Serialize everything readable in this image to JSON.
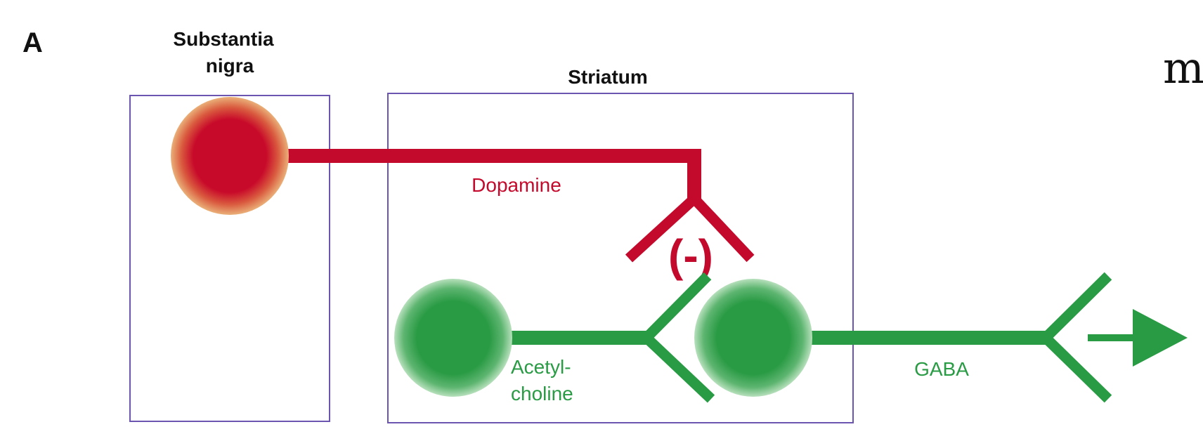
{
  "panel_letter": "A",
  "regions": {
    "substantia_nigra": {
      "title_line1": "Substantia",
      "title_line2": "nigra"
    },
    "striatum": {
      "title": "Striatum"
    }
  },
  "pathways": {
    "dopamine": {
      "label": "Dopamine"
    },
    "acetylcholine": {
      "label_line1": "Acetyl-",
      "label_line2": "choline"
    },
    "gaba": {
      "label": "GABA"
    }
  },
  "inhibition_sign": "(-)",
  "cropped_edge_glyph": "m",
  "colors": {
    "dopamine": "#c40a2c",
    "neuron_glow_red": "#e8a45f",
    "cholinergic": "#2a9b45",
    "neuron_glow_green": "#9fd4a6",
    "region_border": "#6b55b0",
    "text": "#111111"
  }
}
